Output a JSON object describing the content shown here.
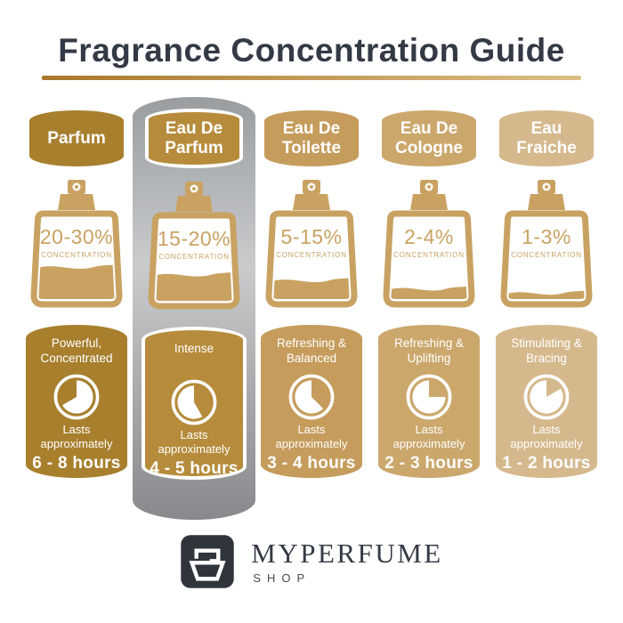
{
  "title": "Fragrance Concentration Guide",
  "divider": {
    "left_color": "#A8772A",
    "right_color": "#DDBE85"
  },
  "bottle_color": "#C9A262",
  "highlight_strip": {
    "top": "#9A9DA0",
    "mid": "#C9CBCD",
    "bottom": "#87898C"
  },
  "columns": [
    {
      "name": "Parfum",
      "concentration": "20-30%",
      "concentration_label": "CONCENTRATION",
      "fill_level": 0.4,
      "description": "Powerful,\nConcentrated",
      "lasts_label": "Lasts\napproximately",
      "duration": "6 - 8 hours",
      "color": "#A87F2D",
      "highlighted": false,
      "clock_white": {
        "start_deg": 0,
        "end_deg": 240
      }
    },
    {
      "name": "Eau De\nParfum",
      "concentration": "15-20%",
      "concentration_label": "CONCENTRATION",
      "fill_level": 0.33,
      "description": "Intense",
      "lasts_label": "Lasts\napproximately",
      "duration": "4 - 5 hours",
      "color": "#B68C3C",
      "highlighted": true,
      "clock_white": {
        "start_deg": 150,
        "end_deg": 360
      }
    },
    {
      "name": "Eau De\nToilette",
      "concentration": "5-15%",
      "concentration_label": "CONCENTRATION",
      "fill_level": 0.24,
      "description": "Refreshing &\nBalanced",
      "lasts_label": "Lasts\napproximately",
      "duration": "3 - 4 hours",
      "color": "#C59C5C",
      "highlighted": false,
      "clock_white": {
        "start_deg": 135,
        "end_deg": 360
      }
    },
    {
      "name": "Eau De\nCologne",
      "concentration": "2-4%",
      "concentration_label": "CONCENTRATION",
      "fill_level": 0.14,
      "description": "Refreshing &\nUplifting",
      "lasts_label": "Lasts\napproximately",
      "duration": "2 - 3 hours",
      "color": "#CBA76C",
      "highlighted": false,
      "clock_white": {
        "start_deg": 90,
        "end_deg": 360
      }
    },
    {
      "name": "Eau\nFraiche",
      "concentration": "1-3%",
      "concentration_label": "CONCENTRATION",
      "fill_level": 0.09,
      "description": "Stimulating &\nBracing",
      "lasts_label": "Lasts\napproximately",
      "duration": "1 - 2 hours",
      "color": "#D5B98D",
      "highlighted": false,
      "clock_white": {
        "start_deg": 60,
        "end_deg": 360
      }
    }
  ],
  "brand": {
    "name": "MYPERFUME",
    "sub": "SHOP",
    "icon": "perfume-bottle-icon",
    "text_color": "#343A45",
    "icon_bg": "#2F353B"
  }
}
